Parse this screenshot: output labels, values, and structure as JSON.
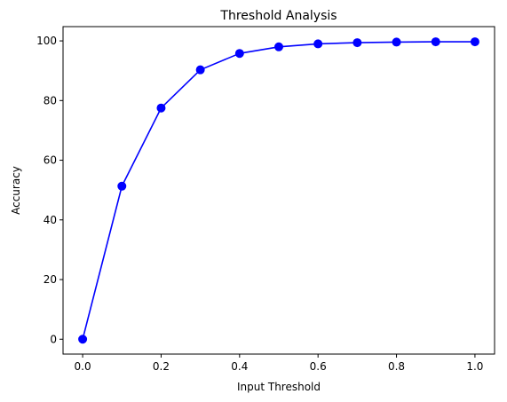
{
  "chart_data": {
    "type": "line",
    "title": "Threshold Analysis",
    "xlabel": "Input Threshold",
    "ylabel": "Accuracy",
    "xlim": [
      -0.05,
      1.05
    ],
    "ylim": [
      -4.98,
      104.78
    ],
    "grid": false,
    "x_ticks": [
      0.0,
      0.2,
      0.4,
      0.6,
      0.8,
      1.0
    ],
    "x_tick_labels": [
      "0.0",
      "0.2",
      "0.4",
      "0.6",
      "0.8",
      "1.0"
    ],
    "y_ticks": [
      0,
      20,
      40,
      60,
      80,
      100
    ],
    "y_tick_labels": [
      "0",
      "20",
      "40",
      "60",
      "80",
      "100"
    ],
    "x": [
      0.0,
      0.1,
      0.2,
      0.3,
      0.4,
      0.5,
      0.6,
      0.7,
      0.8,
      0.9,
      1.0
    ],
    "series": [
      {
        "values": [
          0.0,
          51.3,
          77.5,
          90.3,
          95.8,
          98.0,
          99.0,
          99.4,
          99.6,
          99.7,
          99.7
        ],
        "color": "#0000ff",
        "marker": "circle"
      }
    ]
  }
}
